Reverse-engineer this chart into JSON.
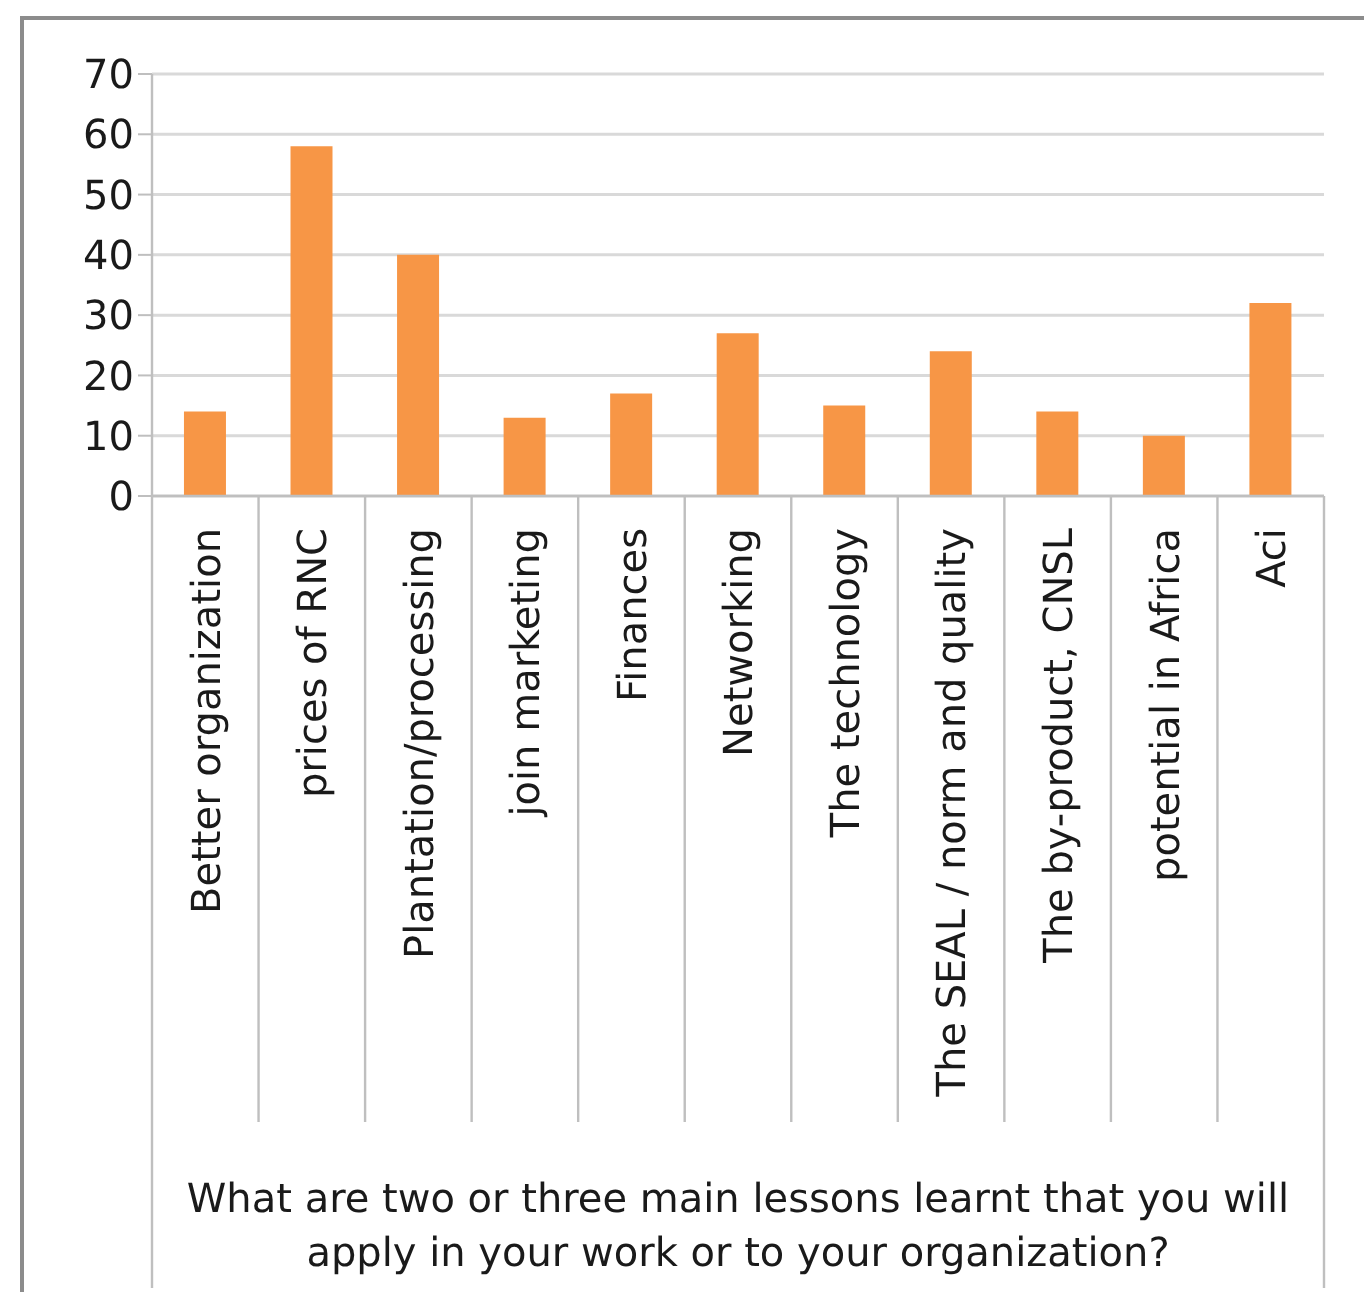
{
  "chart_data": {
    "type": "bar",
    "xlabel": "What are two or three main lessons learnt that you will apply in your work or to your organization?",
    "categories": [
      "Better organization",
      "prices of RNC",
      "Plantation/processing",
      "join marketing",
      "Finances",
      "Networking",
      "The technology",
      "The SEAL / norm and quality",
      "The by-product, CNSL",
      "potential in Africa",
      "Aci"
    ],
    "values": [
      14,
      58,
      40,
      13,
      17,
      27,
      15,
      24,
      14,
      10,
      32
    ],
    "color": "#f79646",
    "ylim": [
      0,
      70
    ],
    "yticks": [
      0,
      10,
      20,
      30,
      40,
      50,
      60,
      70
    ],
    "grid": "y"
  }
}
